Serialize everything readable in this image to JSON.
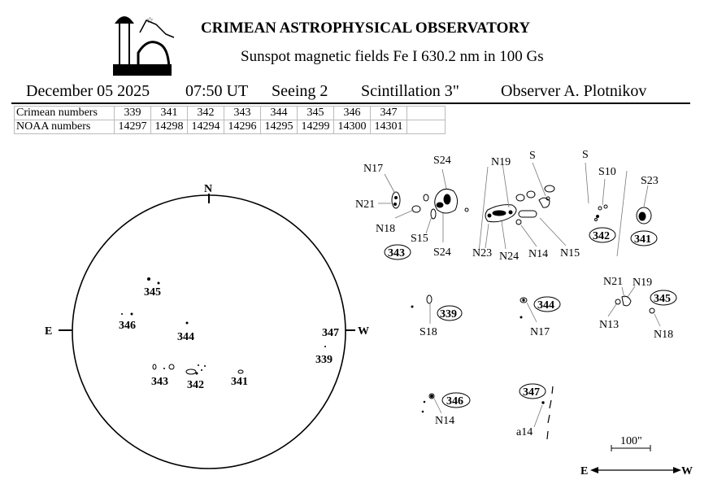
{
  "header": {
    "title": "CRIMEAN ASTROPHYSICAL OBSERVATORY",
    "subtitle": "Sunspot  magnetic  fields  Fe I 630.2 nm in 100 Gs",
    "date": "December  05  2025",
    "time": "07:50 UT",
    "seeing": "Seeing  2",
    "scintillation": "Scintillation 3\"",
    "observer": "Observer   A. Plotnikov"
  },
  "table": {
    "rows": [
      {
        "label": "Crimean numbers",
        "values": [
          "339",
          "341",
          "342",
          "343",
          "344",
          "345",
          "346",
          "347"
        ]
      },
      {
        "label": "NOAA numbers",
        "values": [
          "14297",
          "14298",
          "14294",
          "14296",
          "14295",
          "14299",
          "14300",
          "14301"
        ]
      }
    ]
  },
  "disk": {
    "north": "N",
    "east": "E",
    "west": "W",
    "regions": [
      "345",
      "346",
      "344",
      "343",
      "342",
      "341",
      "347",
      "339"
    ]
  },
  "details": {
    "labels": [
      "N17",
      "N21",
      "N18",
      "S15",
      "S24",
      "S24",
      "N19",
      "N23",
      "N24",
      "N14",
      "N15",
      "S",
      "S",
      "S10",
      "S23",
      "S18",
      "N17",
      "N21",
      "N19",
      "N13",
      "N18",
      "N14",
      "a14"
    ],
    "regions": [
      "343",
      "342",
      "341",
      "339",
      "344",
      "345",
      "346",
      "347"
    ]
  },
  "scale": {
    "label": "100\"",
    "east": "E",
    "west": "W"
  }
}
